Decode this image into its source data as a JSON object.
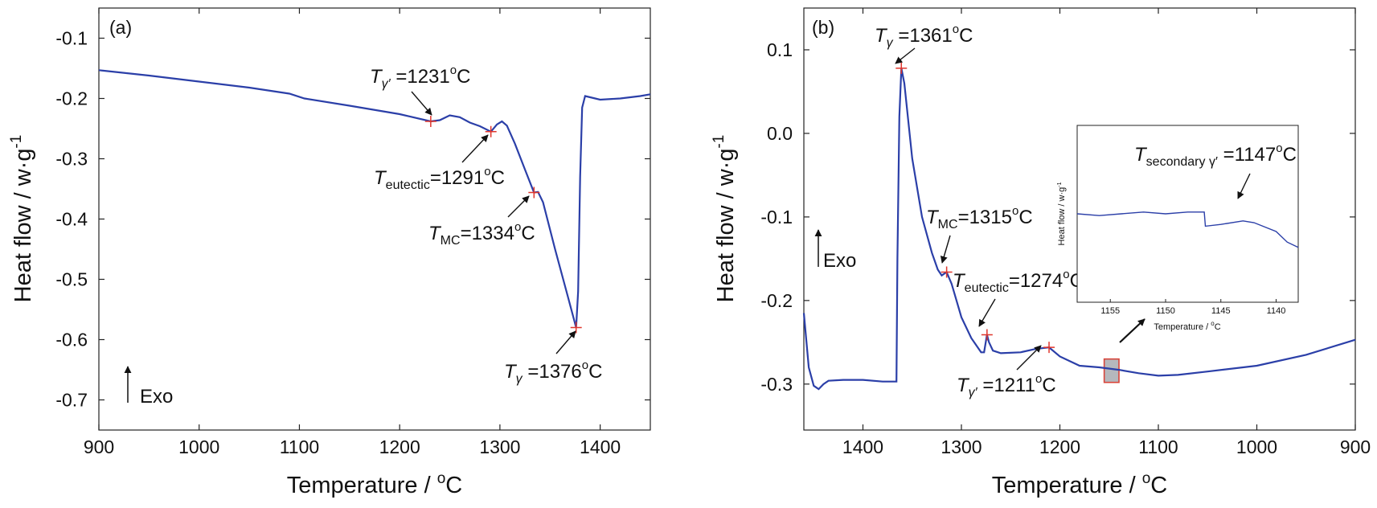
{
  "chart_data": [
    {
      "type": "line",
      "panel_label": "(a)",
      "xlabel": "Temperature / °C",
      "ylabel": "Heat flow / w·g⁻¹",
      "xlim": [
        900,
        1450
      ],
      "ylim": [
        -0.75,
        -0.05
      ],
      "x_ticks": [
        "900",
        "1000",
        "1100",
        "1200",
        "1300",
        "1400"
      ],
      "y_ticks": [
        "-0.1",
        "-0.2",
        "-0.3",
        "-0.4",
        "-0.5",
        "-0.6",
        "-0.7"
      ],
      "exo_label": "Exo",
      "series": [
        {
          "color": "#2b3fa8",
          "points": [
            [
              900,
              -0.153
            ],
            [
              950,
              -0.162
            ],
            [
              1000,
              -0.172
            ],
            [
              1050,
              -0.182
            ],
            [
              1090,
              -0.192
            ],
            [
              1105,
              -0.2
            ],
            [
              1150,
              -0.212
            ],
            [
              1200,
              -0.226
            ],
            [
              1231,
              -0.238
            ],
            [
              1240,
              -0.236
            ],
            [
              1250,
              -0.228
            ],
            [
              1260,
              -0.231
            ],
            [
              1270,
              -0.24
            ],
            [
              1280,
              -0.246
            ],
            [
              1291,
              -0.255
            ],
            [
              1297,
              -0.243
            ],
            [
              1302,
              -0.238
            ],
            [
              1307,
              -0.245
            ],
            [
              1315,
              -0.275
            ],
            [
              1325,
              -0.318
            ],
            [
              1334,
              -0.356
            ],
            [
              1338,
              -0.355
            ],
            [
              1343,
              -0.372
            ],
            [
              1355,
              -0.45
            ],
            [
              1368,
              -0.53
            ],
            [
              1376,
              -0.58
            ],
            [
              1378,
              -0.52
            ],
            [
              1380,
              -0.33
            ],
            [
              1382,
              -0.215
            ],
            [
              1385,
              -0.196
            ],
            [
              1400,
              -0.202
            ],
            [
              1420,
              -0.2
            ],
            [
              1440,
              -0.196
            ],
            [
              1450,
              -0.193
            ]
          ]
        }
      ],
      "markers": [
        {
          "x": 1231,
          "y": -0.238
        },
        {
          "x": 1291,
          "y": -0.255
        },
        {
          "x": 1334,
          "y": -0.356
        },
        {
          "x": 1376,
          "y": -0.58
        }
      ],
      "annotations": [
        {
          "T": "T",
          "sub": "γ′",
          "rest": " =1231",
          "deg": "o",
          "unit": "C"
        },
        {
          "T": "T",
          "sub": "eutectic",
          "rest": "=1291",
          "deg": "o",
          "unit": "C"
        },
        {
          "T": "T",
          "sub": "MC",
          "rest": "=1334",
          "deg": "o",
          "unit": "C"
        },
        {
          "T": "T",
          "sub": "γ",
          "rest": " =1376",
          "deg": "o",
          "unit": "C"
        }
      ]
    },
    {
      "type": "line",
      "panel_label": "(b)",
      "xlabel": "Temperature / °C",
      "ylabel": "Heat flow / w·g⁻¹",
      "xlim": [
        1460,
        900
      ],
      "ylim": [
        -0.355,
        0.15
      ],
      "x_ticks": [
        "1400",
        "1300",
        "1200",
        "1100",
        "1000",
        "900"
      ],
      "y_ticks": [
        "0.1",
        "0.0",
        "-0.1",
        "-0.2",
        "-0.3"
      ],
      "exo_label": "Exo",
      "series": [
        {
          "color": "#2b3fa8",
          "points": [
            [
              1460,
              -0.215
            ],
            [
              1455,
              -0.28
            ],
            [
              1450,
              -0.302
            ],
            [
              1445,
              -0.306
            ],
            [
              1440,
              -0.3
            ],
            [
              1435,
              -0.296
            ],
            [
              1420,
              -0.295
            ],
            [
              1400,
              -0.295
            ],
            [
              1380,
              -0.297
            ],
            [
              1366,
              -0.297
            ],
            [
              1365,
              -0.15
            ],
            [
              1363,
              0.02
            ],
            [
              1361,
              0.078
            ],
            [
              1358,
              0.06
            ],
            [
              1350,
              -0.03
            ],
            [
              1340,
              -0.1
            ],
            [
              1330,
              -0.143
            ],
            [
              1324,
              -0.163
            ],
            [
              1320,
              -0.17
            ],
            [
              1315,
              -0.166
            ],
            [
              1310,
              -0.18
            ],
            [
              1300,
              -0.22
            ],
            [
              1290,
              -0.245
            ],
            [
              1280,
              -0.262
            ],
            [
              1277,
              -0.262
            ],
            [
              1275,
              -0.248
            ],
            [
              1274,
              -0.241
            ],
            [
              1272,
              -0.25
            ],
            [
              1268,
              -0.26
            ],
            [
              1260,
              -0.263
            ],
            [
              1240,
              -0.262
            ],
            [
              1225,
              -0.258
            ],
            [
              1211,
              -0.256
            ],
            [
              1200,
              -0.267
            ],
            [
              1180,
              -0.278
            ],
            [
              1160,
              -0.28
            ],
            [
              1140,
              -0.283
            ],
            [
              1120,
              -0.287
            ],
            [
              1100,
              -0.29
            ],
            [
              1080,
              -0.289
            ],
            [
              1050,
              -0.285
            ],
            [
              1000,
              -0.278
            ],
            [
              950,
              -0.265
            ],
            [
              900,
              -0.247
            ]
          ]
        }
      ],
      "markers": [
        {
          "x": 1361,
          "y": 0.078
        },
        {
          "x": 1315,
          "y": -0.166
        },
        {
          "x": 1274,
          "y": -0.241
        },
        {
          "x": 1211,
          "y": -0.256
        }
      ],
      "annotations": [
        {
          "T": "T",
          "sub": "γ",
          "rest": " =1361",
          "deg": "o",
          "unit": "C"
        },
        {
          "T": "T",
          "sub": "MC",
          "rest": "=1315",
          "deg": "o",
          "unit": "C"
        },
        {
          "T": "T",
          "sub": "eutectic",
          "rest": "=1274",
          "deg": "o",
          "unit": "C"
        },
        {
          "T": "T",
          "sub": "γ′",
          "rest": " =1211",
          "deg": "o",
          "unit": "C"
        }
      ],
      "highlight_box": {
        "x_range": [
          1155,
          1140
        ],
        "y_range": [
          -0.298,
          -0.27
        ],
        "color": "#d9443a",
        "fill": "#b5b8bd"
      },
      "inset": {
        "xlabel": "Temperature / °C",
        "ylabel": "Heat flow / w·g⁻¹",
        "xlim": [
          1158,
          1138
        ],
        "x_ticks": [
          "1155",
          "1150",
          "1145",
          "1140"
        ],
        "ylim": [
          0,
          1
        ],
        "annotation": {
          "T": "T",
          "sub": "secondary γ′",
          "rest": " =1147",
          "deg": "o",
          "unit": "C"
        },
        "series": [
          {
            "color": "#2b3fa8",
            "points": [
              [
                1158,
                0.5
              ],
              [
                1156,
                0.49
              ],
              [
                1154,
                0.5
              ],
              [
                1152,
                0.51
              ],
              [
                1150,
                0.5
              ],
              [
                1148,
                0.51
              ],
              [
                1146.5,
                0.51
              ],
              [
                1146.4,
                0.43
              ],
              [
                1145,
                0.44
              ],
              [
                1143,
                0.46
              ],
              [
                1142,
                0.45
              ],
              [
                1140,
                0.4
              ],
              [
                1139,
                0.34
              ],
              [
                1138,
                0.31
              ]
            ]
          }
        ]
      }
    }
  ]
}
